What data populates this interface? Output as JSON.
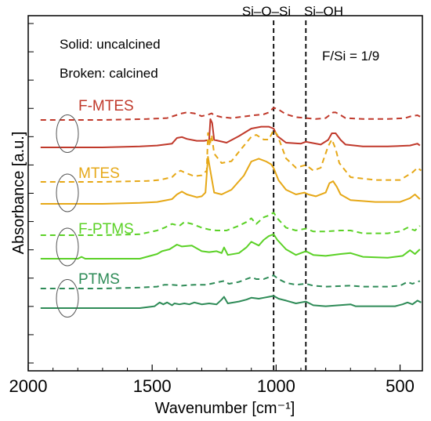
{
  "chart_data": {
    "type": "line",
    "xlabel": "Wavenumber [cm⁻¹]",
    "ylabel": "Absorbance [a.u.]",
    "xlim": [
      2000,
      410
    ],
    "x_reversed": true,
    "x_ticks": [
      2000,
      1500,
      1000,
      500
    ],
    "y_ticks_count": 13,
    "y_ticks_labeled": false,
    "ratio_label": "F/Si = 1/9",
    "style_legend": {
      "solid": "Solid: uncalcined",
      "broken": "Broken: calcined"
    },
    "reference_lines": [
      {
        "label": "Si–O–Si",
        "x": 1010
      },
      {
        "label": "Si–OH",
        "x": 880
      }
    ],
    "series": [
      {
        "name": "F-MTES",
        "color": "#c0392b",
        "calcined": [
          [
            1950,
            0
          ],
          [
            1700,
            0
          ],
          [
            1520,
            0.01
          ],
          [
            1440,
            0.02
          ],
          [
            1380,
            0.07
          ],
          [
            1360,
            0.08
          ],
          [
            1330,
            0.07
          ],
          [
            1300,
            0.04
          ],
          [
            1270,
            0.06
          ],
          [
            1260,
            0.07
          ],
          [
            1250,
            0.05
          ],
          [
            1220,
            0.03
          ],
          [
            1180,
            0.02
          ],
          [
            1120,
            0.04
          ],
          [
            1090,
            0.05
          ],
          [
            1050,
            0.06
          ],
          [
            1030,
            0.08
          ],
          [
            1010,
            0.13
          ],
          [
            990,
            0.11
          ],
          [
            960,
            0.06
          ],
          [
            920,
            0.03
          ],
          [
            880,
            0.02
          ],
          [
            840,
            0.01
          ],
          [
            800,
            0.02
          ],
          [
            780,
            0.06
          ],
          [
            770,
            0.08
          ],
          [
            760,
            0.08
          ],
          [
            745,
            0.06
          ],
          [
            720,
            0.02
          ],
          [
            650,
            0.01
          ],
          [
            550,
            0.01
          ],
          [
            480,
            0.02
          ],
          [
            455,
            0.04
          ],
          [
            430,
            0.05
          ],
          [
            415,
            0.03
          ]
        ],
        "uncalcined": [
          [
            1950,
            0
          ],
          [
            1700,
            0
          ],
          [
            1550,
            0.01
          ],
          [
            1480,
            0.02
          ],
          [
            1420,
            0.04
          ],
          [
            1400,
            0.1
          ],
          [
            1380,
            0.11
          ],
          [
            1360,
            0.09
          ],
          [
            1320,
            0.07
          ],
          [
            1290,
            0.07
          ],
          [
            1270,
            0.08
          ],
          [
            1265,
            0.3
          ],
          [
            1258,
            0.26
          ],
          [
            1250,
            0.08
          ],
          [
            1200,
            0.05
          ],
          [
            1150,
            0.12
          ],
          [
            1100,
            0.2
          ],
          [
            1060,
            0.22
          ],
          [
            1030,
            0.22
          ],
          [
            1010,
            0.2
          ],
          [
            995,
            0.12
          ],
          [
            960,
            0.05
          ],
          [
            900,
            0.04
          ],
          [
            880,
            0.06
          ],
          [
            860,
            0.05
          ],
          [
            820,
            0.03
          ],
          [
            790,
            0.08
          ],
          [
            775,
            0.15
          ],
          [
            760,
            0.15
          ],
          [
            740,
            0.08
          ],
          [
            720,
            0.03
          ],
          [
            650,
            0.01
          ],
          [
            550,
            0.01
          ],
          [
            460,
            0.02
          ],
          [
            430,
            0.04
          ],
          [
            420,
            0.02
          ]
        ]
      },
      {
        "name": "MTES",
        "color": "#e6a817",
        "calcined": [
          [
            1950,
            0
          ],
          [
            1700,
            0
          ],
          [
            1520,
            0.01
          ],
          [
            1470,
            0.02
          ],
          [
            1420,
            0.05
          ],
          [
            1400,
            0.1
          ],
          [
            1385,
            0.12
          ],
          [
            1370,
            0.1
          ],
          [
            1330,
            0.06
          ],
          [
            1300,
            0.07
          ],
          [
            1280,
            0.12
          ],
          [
            1275,
            0.52
          ],
          [
            1268,
            0.38
          ],
          [
            1260,
            0.5
          ],
          [
            1250,
            0.3
          ],
          [
            1220,
            0.2
          ],
          [
            1180,
            0.22
          ],
          [
            1150,
            0.32
          ],
          [
            1100,
            0.48
          ],
          [
            1080,
            0.5
          ],
          [
            1050,
            0.45
          ],
          [
            1030,
            0.45
          ],
          [
            1010,
            0.55
          ],
          [
            995,
            0.5
          ],
          [
            960,
            0.25
          ],
          [
            920,
            0.15
          ],
          [
            880,
            0.18
          ],
          [
            850,
            0.12
          ],
          [
            820,
            0.15
          ],
          [
            790,
            0.38
          ],
          [
            775,
            0.45
          ],
          [
            760,
            0.35
          ],
          [
            745,
            0.2
          ],
          [
            700,
            0.05
          ],
          [
            600,
            0.02
          ],
          [
            500,
            0.02
          ],
          [
            450,
            0.1
          ],
          [
            430,
            0.15
          ],
          [
            415,
            0.12
          ]
        ],
        "uncalcined": [
          [
            1950,
            0
          ],
          [
            1700,
            0
          ],
          [
            1550,
            0.01
          ],
          [
            1480,
            0.02
          ],
          [
            1420,
            0.05
          ],
          [
            1400,
            0.1
          ],
          [
            1380,
            0.13
          ],
          [
            1360,
            0.1
          ],
          [
            1320,
            0.07
          ],
          [
            1300,
            0.08
          ],
          [
            1285,
            0.12
          ],
          [
            1275,
            0.5
          ],
          [
            1262,
            0.3
          ],
          [
            1250,
            0.12
          ],
          [
            1220,
            0.1
          ],
          [
            1180,
            0.15
          ],
          [
            1130,
            0.3
          ],
          [
            1100,
            0.45
          ],
          [
            1070,
            0.48
          ],
          [
            1040,
            0.45
          ],
          [
            1020,
            0.42
          ],
          [
            1010,
            0.38
          ],
          [
            990,
            0.25
          ],
          [
            960,
            0.15
          ],
          [
            920,
            0.1
          ],
          [
            885,
            0.12
          ],
          [
            870,
            0.1
          ],
          [
            840,
            0.08
          ],
          [
            800,
            0.12
          ],
          [
            785,
            0.22
          ],
          [
            770,
            0.24
          ],
          [
            755,
            0.18
          ],
          [
            740,
            0.1
          ],
          [
            700,
            0.04
          ],
          [
            600,
            0.02
          ],
          [
            500,
            0.02
          ],
          [
            460,
            0.06
          ],
          [
            440,
            0.1
          ],
          [
            420,
            0.05
          ]
        ]
      },
      {
        "name": "F-PTMS",
        "color": "#5bd126",
        "calcined": [
          [
            1950,
            0
          ],
          [
            1700,
            0
          ],
          [
            1550,
            0.01
          ],
          [
            1480,
            0.05
          ],
          [
            1450,
            0.08
          ],
          [
            1420,
            0.12
          ],
          [
            1390,
            0.1
          ],
          [
            1370,
            0.14
          ],
          [
            1340,
            0.12
          ],
          [
            1300,
            0.08
          ],
          [
            1270,
            0.06
          ],
          [
            1240,
            0.05
          ],
          [
            1200,
            0.05
          ],
          [
            1150,
            0.1
          ],
          [
            1120,
            0.14
          ],
          [
            1100,
            0.18
          ],
          [
            1080,
            0.12
          ],
          [
            1050,
            0.19
          ],
          [
            1030,
            0.21
          ],
          [
            1010,
            0.24
          ],
          [
            995,
            0.18
          ],
          [
            960,
            0.08
          ],
          [
            920,
            0.05
          ],
          [
            880,
            0.07
          ],
          [
            850,
            0.04
          ],
          [
            800,
            0.04
          ],
          [
            740,
            0.05
          ],
          [
            700,
            0.05
          ],
          [
            650,
            0.02
          ],
          [
            550,
            0.02
          ],
          [
            500,
            0.04
          ],
          [
            470,
            0.08
          ],
          [
            440,
            0.05
          ],
          [
            420,
            0.1
          ]
        ],
        "uncalcined": [
          [
            1950,
            0
          ],
          [
            1800,
            0
          ],
          [
            1785,
            0.02
          ],
          [
            1770,
            0
          ],
          [
            1550,
            0
          ],
          [
            1480,
            0.05
          ],
          [
            1460,
            0.08
          ],
          [
            1430,
            0.1
          ],
          [
            1400,
            0.15
          ],
          [
            1380,
            0.13
          ],
          [
            1340,
            0.14
          ],
          [
            1300,
            0.08
          ],
          [
            1270,
            0.07
          ],
          [
            1240,
            0.08
          ],
          [
            1220,
            0.06
          ],
          [
            1210,
            0.12
          ],
          [
            1195,
            0.04
          ],
          [
            1150,
            0.06
          ],
          [
            1120,
            0.12
          ],
          [
            1100,
            0.18
          ],
          [
            1070,
            0.14
          ],
          [
            1050,
            0.2
          ],
          [
            1030,
            0.24
          ],
          [
            1010,
            0.26
          ],
          [
            995,
            0.2
          ],
          [
            960,
            0.1
          ],
          [
            920,
            0.04
          ],
          [
            880,
            0.08
          ],
          [
            850,
            0.04
          ],
          [
            800,
            0.03
          ],
          [
            740,
            0.05
          ],
          [
            700,
            0.06
          ],
          [
            650,
            0.02
          ],
          [
            550,
            0.01
          ],
          [
            490,
            0.03
          ],
          [
            460,
            0.09
          ],
          [
            440,
            0.05
          ],
          [
            420,
            0.1
          ]
        ]
      },
      {
        "name": "PTMS",
        "color": "#2e8b57",
        "calcined": [
          [
            1950,
            0
          ],
          [
            1700,
            0
          ],
          [
            1550,
            0.01
          ],
          [
            1480,
            0.02
          ],
          [
            1450,
            0.04
          ],
          [
            1420,
            0.04
          ],
          [
            1380,
            0.03
          ],
          [
            1330,
            0.04
          ],
          [
            1280,
            0.04
          ],
          [
            1230,
            0.07
          ],
          [
            1210,
            0.08
          ],
          [
            1190,
            0.05
          ],
          [
            1150,
            0.07
          ],
          [
            1120,
            0.1
          ],
          [
            1100,
            0.12
          ],
          [
            1080,
            0.1
          ],
          [
            1050,
            0.1
          ],
          [
            1030,
            0.12
          ],
          [
            1010,
            0.14
          ],
          [
            990,
            0.1
          ],
          [
            960,
            0.06
          ],
          [
            920,
            0.04
          ],
          [
            880,
            0.05
          ],
          [
            850,
            0.03
          ],
          [
            800,
            0.02
          ],
          [
            700,
            0.03
          ],
          [
            650,
            0.02
          ],
          [
            550,
            0.02
          ],
          [
            500,
            0.03
          ],
          [
            470,
            0.07
          ],
          [
            450,
            0.05
          ],
          [
            420,
            0.08
          ]
        ],
        "uncalcined": [
          [
            1950,
            0
          ],
          [
            1700,
            0
          ],
          [
            1550,
            0
          ],
          [
            1490,
            0.02
          ],
          [
            1470,
            0.06
          ],
          [
            1455,
            0.04
          ],
          [
            1440,
            0.06
          ],
          [
            1420,
            0.03
          ],
          [
            1410,
            0.05
          ],
          [
            1390,
            0.04
          ],
          [
            1370,
            0.05
          ],
          [
            1350,
            0.04
          ],
          [
            1330,
            0.06
          ],
          [
            1300,
            0.04
          ],
          [
            1270,
            0.05
          ],
          [
            1240,
            0.04
          ],
          [
            1220,
            0.09
          ],
          [
            1210,
            0.12
          ],
          [
            1195,
            0.05
          ],
          [
            1150,
            0.07
          ],
          [
            1120,
            0.09
          ],
          [
            1100,
            0.11
          ],
          [
            1070,
            0.1
          ],
          [
            1050,
            0.11
          ],
          [
            1030,
            0.12
          ],
          [
            1010,
            0.13
          ],
          [
            990,
            0.1
          ],
          [
            960,
            0.08
          ],
          [
            920,
            0.05
          ],
          [
            880,
            0.07
          ],
          [
            850,
            0.03
          ],
          [
            800,
            0.02
          ],
          [
            700,
            0.04
          ],
          [
            680,
            0.02
          ],
          [
            600,
            0.02
          ],
          [
            520,
            0.02
          ],
          [
            490,
            0.04
          ],
          [
            470,
            0.06
          ],
          [
            450,
            0.04
          ],
          [
            430,
            0.08
          ],
          [
            415,
            0.06
          ]
        ]
      }
    ]
  }
}
